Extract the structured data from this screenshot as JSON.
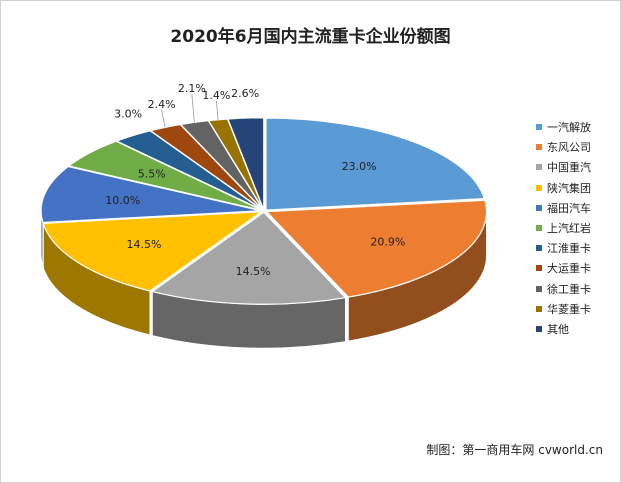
{
  "chart_data": {
    "type": "pie",
    "title": "2020年6月国内主流重卡企业份额图",
    "categories": [
      "一汽解放",
      "东风公司",
      "中国重汽",
      "陕汽集团",
      "福田汽车",
      "上汽红岩",
      "江淮重卡",
      "大运重卡",
      "徐工重卡",
      "华菱重卡",
      "其他"
    ],
    "values": [
      23.0,
      20.9,
      14.5,
      14.5,
      10.0,
      5.5,
      3.0,
      2.4,
      2.1,
      1.4,
      2.6
    ],
    "labels": [
      "23.0%",
      "20.9%",
      "14.5%",
      "14.5%",
      "10.0%",
      "5.5%",
      "3.0%",
      "2.4%",
      "2.1%",
      "1.4%",
      "2.6%"
    ],
    "colors": [
      "#5B9BD5",
      "#ED7D31",
      "#A5A5A5",
      "#FFC000",
      "#4472C4",
      "#70AD47",
      "#255E91",
      "#9E480E",
      "#636363",
      "#997300",
      "#264478"
    ],
    "legend_position": "right",
    "style": "3d-exploded"
  },
  "credit": "制图：第一商用车网 cvworld.cn"
}
